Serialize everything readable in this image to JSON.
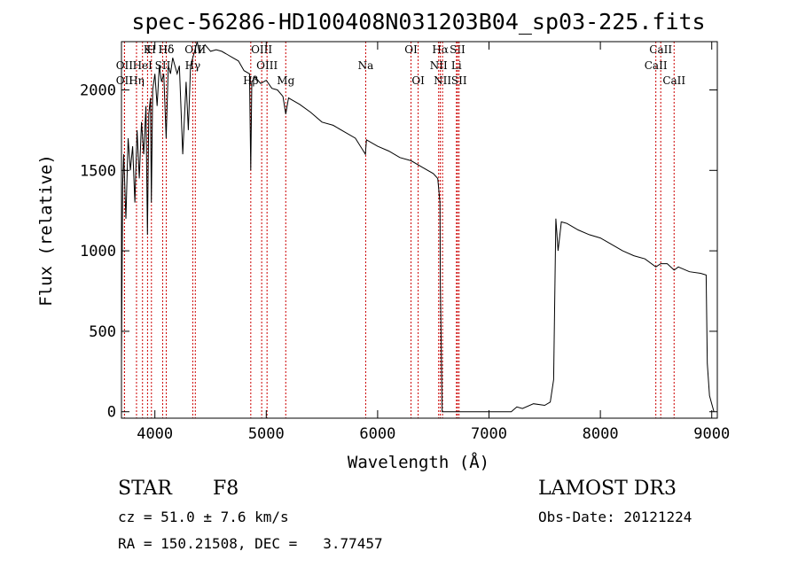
{
  "chart_data": {
    "type": "line",
    "title": "spec-56286-HD100408N031203B04_sp03-225.fits",
    "xlabel": "Wavelength (Å)",
    "ylabel": "Flux (relative)",
    "xlim": [
      3700,
      9050
    ],
    "ylim": [
      -40,
      2300
    ],
    "xticks": [
      4000,
      5000,
      6000,
      7000,
      8000,
      9000
    ],
    "yticks": [
      0,
      500,
      1000,
      1500,
      2000
    ],
    "series": [
      {
        "name": "spectrum",
        "x": [
          3700,
          3710,
          3720,
          3740,
          3760,
          3780,
          3800,
          3820,
          3840,
          3860,
          3880,
          3900,
          3920,
          3933,
          3945,
          3960,
          3968,
          3980,
          4000,
          4020,
          4040,
          4060,
          4080,
          4101,
          4120,
          4140,
          4160,
          4180,
          4200,
          4220,
          4250,
          4280,
          4300,
          4320,
          4340,
          4360,
          4380,
          4400,
          4450,
          4500,
          4550,
          4600,
          4650,
          4700,
          4750,
          4800,
          4850,
          4861,
          4870,
          4900,
          4950,
          5000,
          5050,
          5100,
          5150,
          5175,
          5200,
          5300,
          5400,
          5500,
          5600,
          5700,
          5800,
          5890,
          5900,
          6000,
          6100,
          6200,
          6300,
          6400,
          6500,
          6540,
          6560,
          6563,
          6580,
          6600,
          6700,
          6800,
          6900,
          7000,
          7100,
          7200,
          7250,
          7300,
          7400,
          7500,
          7550,
          7580,
          7600,
          7620,
          7650,
          7700,
          7800,
          7900,
          8000,
          8100,
          8200,
          8300,
          8400,
          8498,
          8542,
          8600,
          8662,
          8700,
          8800,
          8900,
          8950,
          8960,
          8980,
          9000,
          9020
        ],
        "y": [
          300,
          1400,
          1600,
          1200,
          1700,
          1500,
          1650,
          1300,
          1750,
          1450,
          1800,
          1600,
          1900,
          1100,
          1850,
          1950,
          1300,
          2000,
          2100,
          1900,
          2150,
          2050,
          2100,
          1700,
          2150,
          2100,
          2200,
          2150,
          2100,
          2150,
          1600,
          2050,
          1750,
          2150,
          2200,
          2250,
          2300,
          2230,
          2280,
          2240,
          2250,
          2240,
          2220,
          2200,
          2180,
          2120,
          2100,
          1500,
          2050,
          2080,
          2040,
          2060,
          2010,
          2000,
          1960,
          1850,
          1950,
          1910,
          1860,
          1800,
          1780,
          1740,
          1700,
          1600,
          1690,
          1650,
          1620,
          1580,
          1560,
          1520,
          1480,
          1450,
          1300,
          800,
          0,
          0,
          0,
          0,
          0,
          0,
          0,
          0,
          30,
          20,
          50,
          40,
          60,
          200,
          1200,
          1000,
          1180,
          1170,
          1130,
          1100,
          1080,
          1040,
          1000,
          970,
          950,
          900,
          920,
          920,
          880,
          900,
          870,
          860,
          850,
          300,
          100,
          50,
          0
        ],
        "color": "#000000"
      }
    ],
    "lines": [
      {
        "name": "Hδ",
        "x": 4102,
        "row": 0
      },
      {
        "name": "K",
        "x": 3934,
        "row": 0
      },
      {
        "name": "H",
        "x": 3969,
        "row": 0
      },
      {
        "name": "Hδ",
        "x": 4102,
        "row": 0
      },
      {
        "name": "OIII",
        "x": 4363,
        "row": 0
      },
      {
        "name": "OIII",
        "x": 4959,
        "row": 0
      },
      {
        "name": "OI",
        "x": 6300,
        "row": 0
      },
      {
        "name": "Hα",
        "x": 6563,
        "row": 0
      },
      {
        "name": "SII",
        "x": 6717,
        "row": 0
      },
      {
        "name": "CaII",
        "x": 8542,
        "row": 0
      },
      {
        "name": "OII",
        "x": 3727,
        "row": 1
      },
      {
        "name": "HeI",
        "x": 3889,
        "row": 1
      },
      {
        "name": "SII",
        "x": 4070,
        "row": 1
      },
      {
        "name": "Hγ",
        "x": 4340,
        "row": 1
      },
      {
        "name": "OIII",
        "x": 5007,
        "row": 1
      },
      {
        "name": "Na",
        "x": 5893,
        "row": 1
      },
      {
        "name": "NII",
        "x": 6548,
        "row": 1
      },
      {
        "name": "Li",
        "x": 6708,
        "row": 1
      },
      {
        "name": "CaII",
        "x": 8498,
        "row": 1
      },
      {
        "name": "OII",
        "x": 3727,
        "row": 2
      },
      {
        "name": "Hη",
        "x": 3835,
        "row": 2
      },
      {
        "name": "Hβ",
        "x": 4861,
        "row": 2
      },
      {
        "name": "Mg",
        "x": 5175,
        "row": 2
      },
      {
        "name": "OI",
        "x": 6364,
        "row": 2
      },
      {
        "name": "NII",
        "x": 6583,
        "row": 2
      },
      {
        "name": "SII",
        "x": 6731,
        "row": 2
      },
      {
        "name": "CaII",
        "x": 8662,
        "row": 2
      }
    ],
    "line_color": "#cc0000"
  },
  "info": {
    "object_type": "STAR",
    "subclass": "F8",
    "survey": "LAMOST DR3",
    "redshift": "cz = 51.0 ± 7.6 km/s",
    "obs_date": "Obs-Date: 20121224",
    "coords": "RA = 150.21508, DEC =   3.77457"
  }
}
